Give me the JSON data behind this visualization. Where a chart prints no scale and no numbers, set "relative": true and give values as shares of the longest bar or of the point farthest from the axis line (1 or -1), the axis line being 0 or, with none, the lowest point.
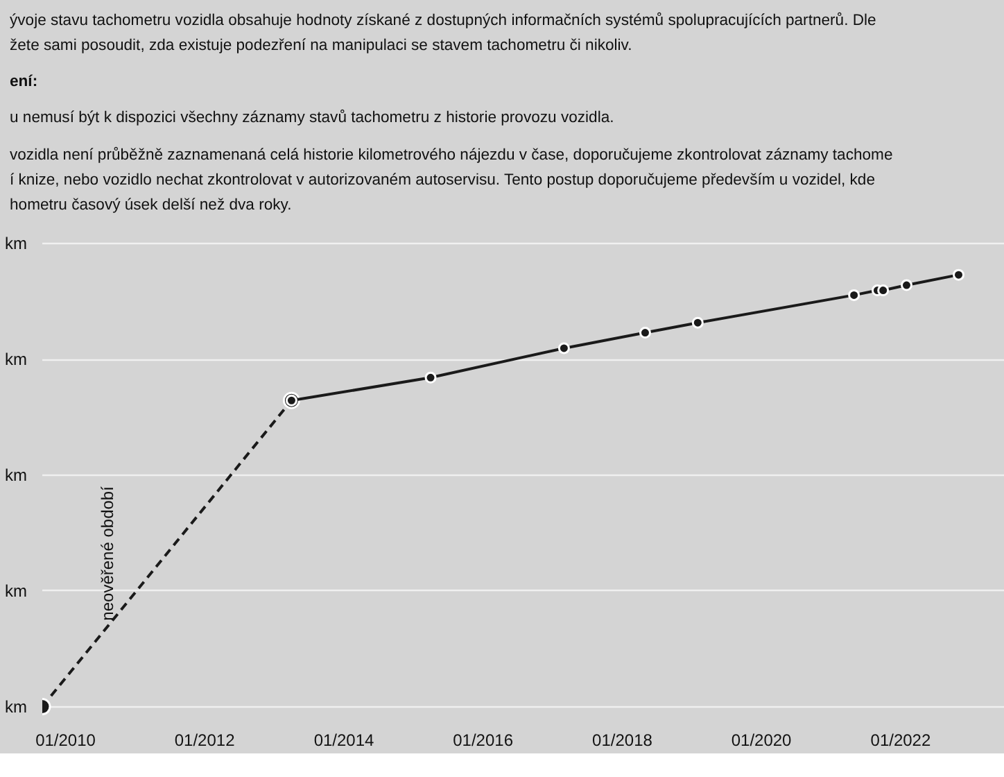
{
  "chart_data": {
    "type": "line",
    "relative": true,
    "annotations": [
      "ývoje stavu tachometru vozidla obsahuje hodnoty získané z dostupných informačních systémů spolupracujících partnerů. Dle",
      "žete sami posoudit, zda existuje podezření na manipulaci se stavem tachometru či nikoliv.",
      "ení:",
      "u nemusí být k dispozici všechny záznamy stavů tachometru z historie provozu vozidla.",
      "vozidla není průběžně zaznamenaná celá historie kilometrového nájezdu v čase, doporučujeme zkontrolovat záznamy tachome",
      "í knize, nebo vozidlo nechat zkontrolovat v autorizovaném autoservisu. Tento postup doporučujeme především u vozidel, kde",
      "hometru časový úsek delší než dva roky.",
      "km",
      "km",
      "km",
      "km",
      "km",
      "neověřené období"
    ],
    "series": [
      {
        "color": "#1a1a1a",
        "line_style": "dashed",
        "x": [
          "2009-09",
          "2013-04"
        ],
        "values": [
          0,
          0.709
        ]
      },
      {
        "color": "#1a1a1a",
        "line_style": "solid",
        "x": [
          "2013-04",
          "2015-04",
          "2017-03",
          "2018-05",
          "2019-02",
          "2021-05",
          "2021-09",
          "2021-10",
          "2022-02",
          "2022-11"
        ],
        "values": [
          0.709,
          0.762,
          0.83,
          0.866,
          0.889,
          0.953,
          0.964,
          0.964,
          0.976,
          1
        ]
      }
    ],
    "marker": "circle",
    "xlim": [
      "2009-09",
      "2023-07"
    ],
    "xticks": [
      {
        "value": "2010-01",
        "label": "01/2010"
      },
      {
        "value": "2012-01",
        "label": "01/2012"
      },
      {
        "value": "2014-01",
        "label": "01/2014"
      },
      {
        "value": "2016-01",
        "label": "01/2016"
      },
      {
        "value": "2018-01",
        "label": "01/2018"
      },
      {
        "value": "2020-01",
        "label": "01/2020"
      },
      {
        "value": "2022-01",
        "label": "01/2022"
      }
    ],
    "grid": "y"
  }
}
